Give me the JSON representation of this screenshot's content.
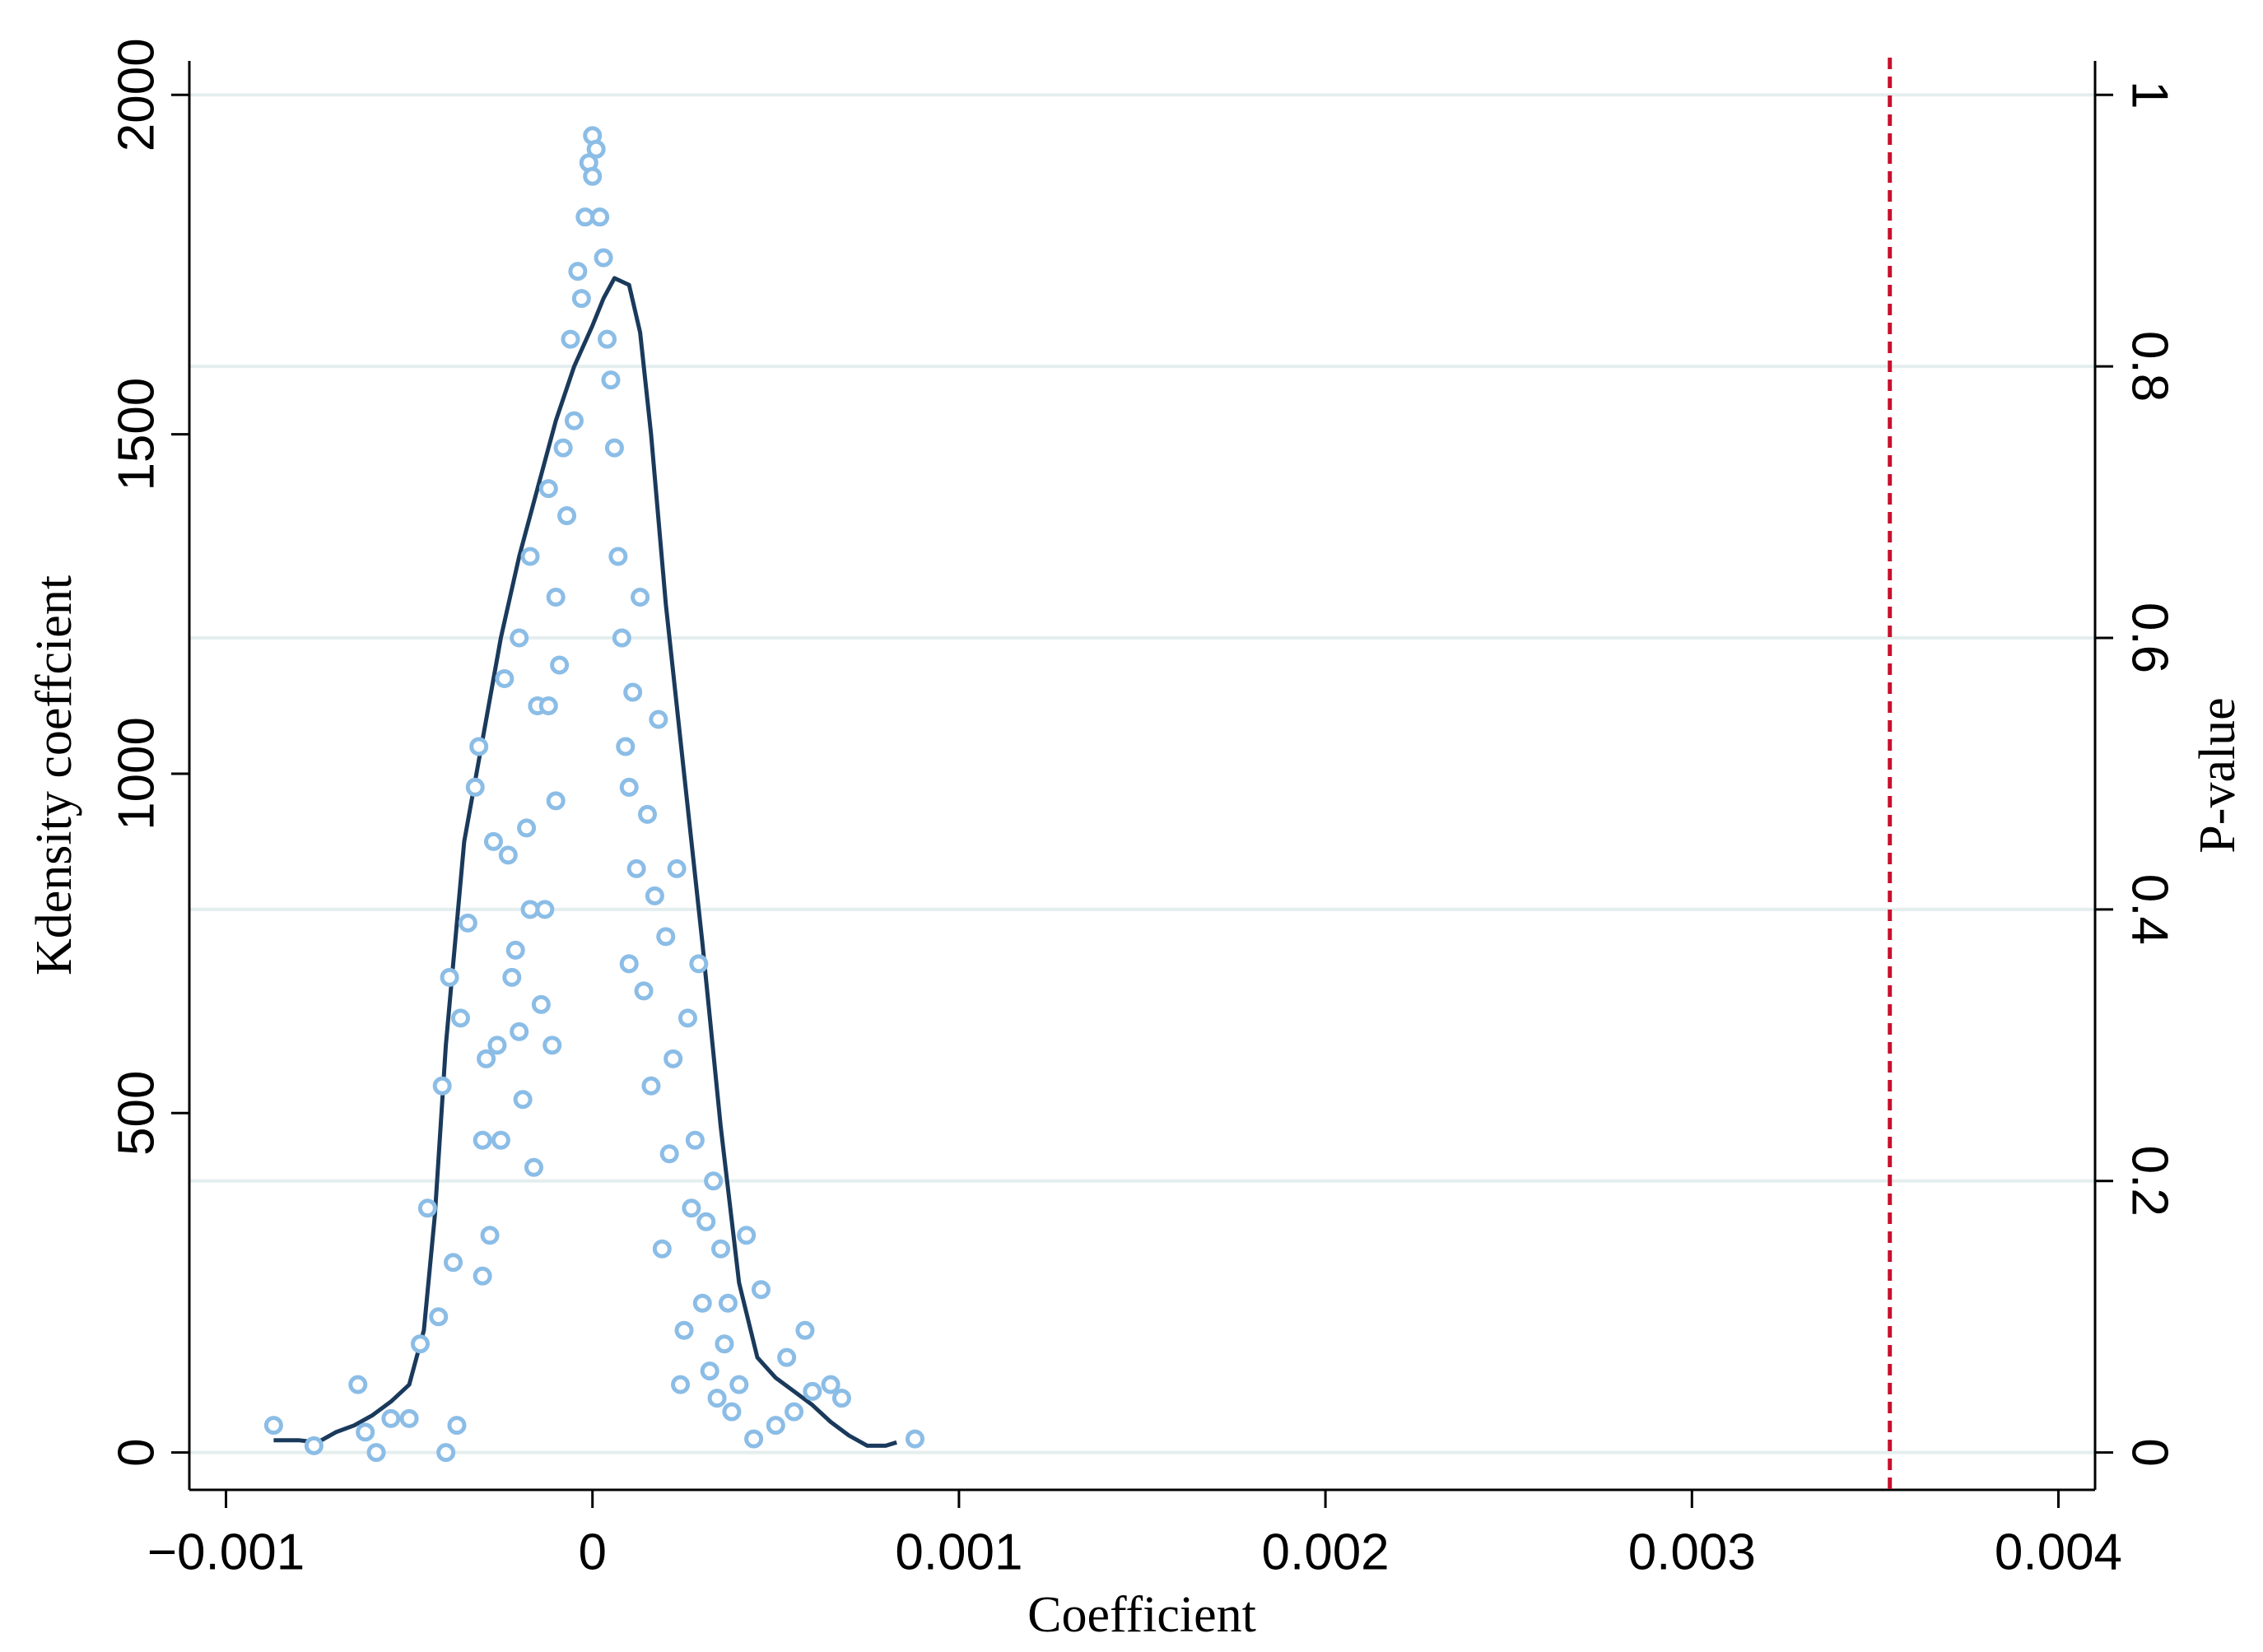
{
  "chart_data": {
    "type": "combo",
    "xlabel": "Coefficient",
    "ylabel": "Kdensity coeffcient",
    "y2label": "P-value",
    "xlim": [
      -0.0011,
      0.0041
    ],
    "xticks": [
      {
        "value": -0.001,
        "label": "−0.001"
      },
      0,
      0.001,
      0.002,
      0.003,
      0.004
    ],
    "ylim": [
      -55,
      2050
    ],
    "yticks": [
      0,
      500,
      1000,
      1500,
      2000
    ],
    "y2lim": [
      -0.0275,
      1.025
    ],
    "y2ticks": [
      0,
      0.2,
      0.4,
      0.6,
      0.8,
      1
    ],
    "grid": true,
    "grid_color": "#e4eeee",
    "vline": 0.00354,
    "vline_color": "#c8102e",
    "series": [
      {
        "type": "line",
        "color": "#1a3a5c",
        "x": [
          -0.00087,
          -0.0008,
          -0.00075,
          -0.0007,
          -0.00065,
          -0.0006,
          -0.00055,
          -0.0005,
          -0.00046,
          -0.00043,
          -0.0004,
          -0.00035,
          -0.0003,
          -0.00025,
          -0.0002,
          -0.00015,
          -0.0001,
          -5e-05,
          0,
          3e-05,
          6e-05,
          0.0001,
          0.00013,
          0.00016,
          0.0002,
          0.00025,
          0.0003,
          0.00035,
          0.0004,
          0.00045,
          0.0005,
          0.00055,
          0.0006,
          0.00065,
          0.0007,
          0.00075,
          0.0008,
          0.00083
        ],
        "values": [
          18,
          18,
          15,
          30,
          40,
          55,
          75,
          100,
          180,
          350,
          600,
          900,
          1050,
          1200,
          1320,
          1420,
          1520,
          1600,
          1660,
          1700,
          1730,
          1720,
          1650,
          1500,
          1250,
          1000,
          750,
          480,
          250,
          140,
          110,
          90,
          70,
          45,
          25,
          10,
          10,
          15
        ]
      },
      {
        "type": "scatter",
        "axis": "y2",
        "color": "#8bbde6",
        "x": [
          -0.00087,
          -0.00076,
          -0.00064,
          -0.00062,
          -0.00059,
          -0.00055,
          -0.0005,
          -0.00047,
          -0.00045,
          -0.00042,
          -0.00041,
          -0.0004,
          -0.00039,
          -0.00038,
          -0.00037,
          -0.00036,
          -0.00034,
          -0.00032,
          -0.00031,
          -0.0003,
          -0.0003,
          -0.00029,
          -0.00028,
          -0.00027,
          -0.00026,
          -0.00025,
          -0.00024,
          -0.00023,
          -0.00022,
          -0.00021,
          -0.0002,
          -0.0002,
          -0.00019,
          -0.00018,
          -0.00017,
          -0.00017,
          -0.00016,
          -0.00015,
          -0.00014,
          -0.00013,
          -0.00012,
          -0.00012,
          -0.00011,
          -0.0001,
          -0.0001,
          -9e-05,
          -8e-05,
          -7e-05,
          -6e-05,
          -5e-05,
          -4e-05,
          -3e-05,
          -2e-05,
          -1e-05,
          0,
          0,
          1e-05,
          2e-05,
          3e-05,
          4e-05,
          5e-05,
          6e-05,
          7e-05,
          8e-05,
          9e-05,
          0.0001,
          0.0001,
          0.00011,
          0.00012,
          0.00013,
          0.00014,
          0.00015,
          0.00016,
          0.00017,
          0.00018,
          0.00019,
          0.0002,
          0.00021,
          0.00022,
          0.00023,
          0.00024,
          0.00025,
          0.00026,
          0.00027,
          0.00028,
          0.00029,
          0.0003,
          0.00031,
          0.00032,
          0.00033,
          0.00034,
          0.00035,
          0.00036,
          0.00037,
          0.00038,
          0.0004,
          0.00042,
          0.00044,
          0.00046,
          0.0005,
          0.00053,
          0.00055,
          0.00058,
          0.0006,
          0.00065,
          0.00068,
          0.00088
        ],
        "values": [
          0.02,
          0.005,
          0.05,
          0.015,
          0,
          0.025,
          0.025,
          0.08,
          0.18,
          0.1,
          0.27,
          0,
          0.35,
          0.14,
          0.02,
          0.32,
          0.39,
          0.49,
          0.52,
          0.13,
          0.23,
          0.29,
          0.16,
          0.45,
          0.3,
          0.23,
          0.57,
          0.44,
          0.35,
          0.37,
          0.31,
          0.6,
          0.26,
          0.46,
          0.66,
          0.4,
          0.21,
          0.55,
          0.33,
          0.4,
          0.55,
          0.71,
          0.3,
          0.48,
          0.63,
          0.58,
          0.74,
          0.69,
          0.82,
          0.76,
          0.87,
          0.85,
          0.91,
          0.95,
          0.97,
          0.94,
          0.96,
          0.91,
          0.88,
          0.82,
          0.79,
          0.74,
          0.66,
          0.6,
          0.52,
          0.49,
          0.36,
          0.56,
          0.43,
          0.63,
          0.34,
          0.47,
          0.27,
          0.41,
          0.54,
          0.15,
          0.38,
          0.22,
          0.29,
          0.43,
          0.05,
          0.09,
          0.32,
          0.18,
          0.23,
          0.36,
          0.11,
          0.17,
          0.06,
          0.2,
          0.04,
          0.15,
          0.08,
          0.11,
          0.03,
          0.05,
          0.16,
          0.01,
          0.12,
          0.02,
          0.07,
          0.03,
          0.09,
          0.045,
          0.05,
          0.04,
          0.01
        ]
      }
    ]
  }
}
